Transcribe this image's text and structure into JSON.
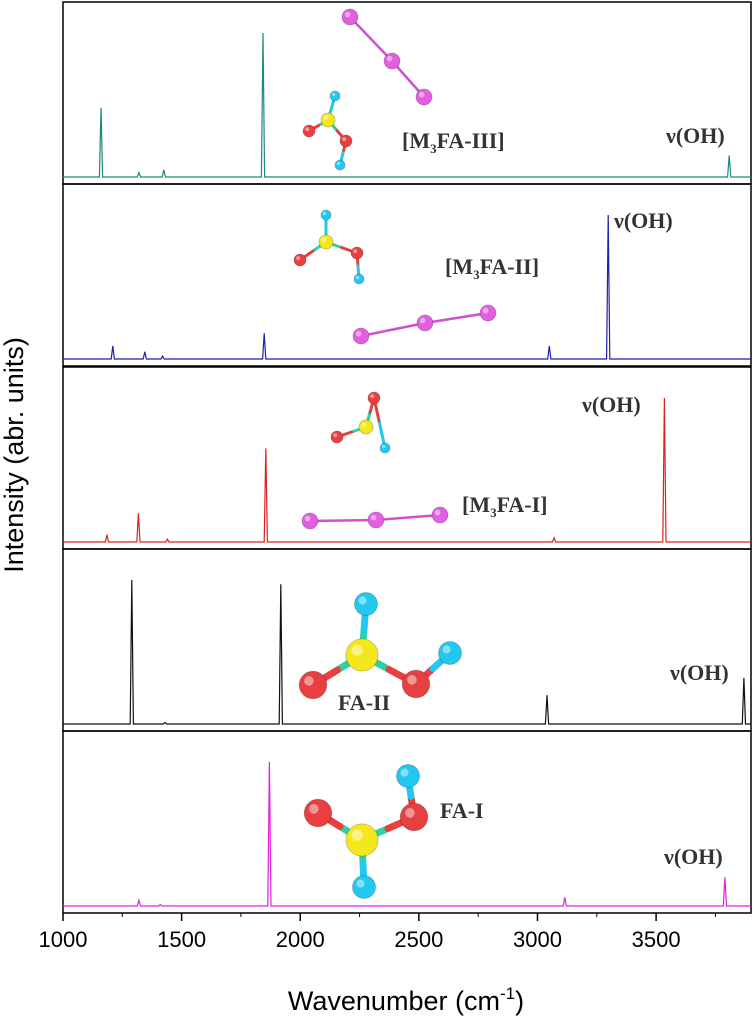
{
  "chart_data": {
    "type": "line",
    "xlabel": "Wavenumber (cm",
    "xlabel_sup": "-1",
    "xlabel_end": ")",
    "ylabel": "Intensity (abr. units)",
    "xlim": [
      1000,
      3900
    ],
    "xticks": [
      "1000",
      "1500",
      "2000",
      "2500",
      "3000",
      "3500"
    ],
    "xtick_values": [
      1000,
      1500,
      2000,
      2500,
      3000,
      3500
    ],
    "grid": false,
    "panels": [
      {
        "name": "[M3FA-III]",
        "label_parts": [
          "[M",
          "3",
          "FA-III]"
        ],
        "oh_label": "ν(OH)",
        "color": "#1a8a7a",
        "peaks": [
          {
            "x": 1160,
            "y": 0.48
          },
          {
            "x": 1320,
            "y": 0.03
          },
          {
            "x": 1425,
            "y": 0.05
          },
          {
            "x": 1843,
            "y": 1.0
          },
          {
            "x": 3808,
            "y": 0.15
          }
        ]
      },
      {
        "name": "[M3FA-II]",
        "label_parts": [
          "[M",
          "3",
          "FA-II]"
        ],
        "oh_label": "ν(OH)",
        "color": "#1f1fb0",
        "peaks": [
          {
            "x": 1210,
            "y": 0.09
          },
          {
            "x": 1345,
            "y": 0.05
          },
          {
            "x": 1420,
            "y": 0.02
          },
          {
            "x": 1848,
            "y": 0.18
          },
          {
            "x": 3050,
            "y": 0.09
          },
          {
            "x": 3298,
            "y": 1.0
          }
        ]
      },
      {
        "name": "[M3FA-I]",
        "label_parts": [
          "[M",
          "3",
          "FA-I]"
        ],
        "oh_label": "ν(OH)",
        "color": "#e02020",
        "peaks": [
          {
            "x": 1185,
            "y": 0.05
          },
          {
            "x": 1318,
            "y": 0.2
          },
          {
            "x": 1440,
            "y": 0.02
          },
          {
            "x": 1855,
            "y": 0.65
          },
          {
            "x": 3070,
            "y": 0.03
          },
          {
            "x": 3535,
            "y": 1.0
          }
        ]
      },
      {
        "name": "FA-II",
        "label_parts": [
          "FA-II"
        ],
        "oh_label": "ν(OH)",
        "color": "#111111",
        "peaks": [
          {
            "x": 1290,
            "y": 1.0
          },
          {
            "x": 1430,
            "y": 0.01
          },
          {
            "x": 1918,
            "y": 0.97
          },
          {
            "x": 3040,
            "y": 0.2
          },
          {
            "x": 3870,
            "y": 0.32
          }
        ]
      },
      {
        "name": "FA-I",
        "label_parts": [
          "FA-I"
        ],
        "oh_label": "ν(OH)",
        "color": "#e020e0",
        "peaks": [
          {
            "x": 1320,
            "y": 0.04
          },
          {
            "x": 1410,
            "y": 0.01
          },
          {
            "x": 1870,
            "y": 1.0
          },
          {
            "x": 3115,
            "y": 0.06
          },
          {
            "x": 3790,
            "y": 0.2
          }
        ]
      }
    ]
  },
  "molecule_colors": {
    "hydrogen": "#22c8f0",
    "carbon": "#f4e81c",
    "oxygen": "#e84040",
    "matrix": "#e060e0",
    "bond_matrix": "#d050d0"
  }
}
